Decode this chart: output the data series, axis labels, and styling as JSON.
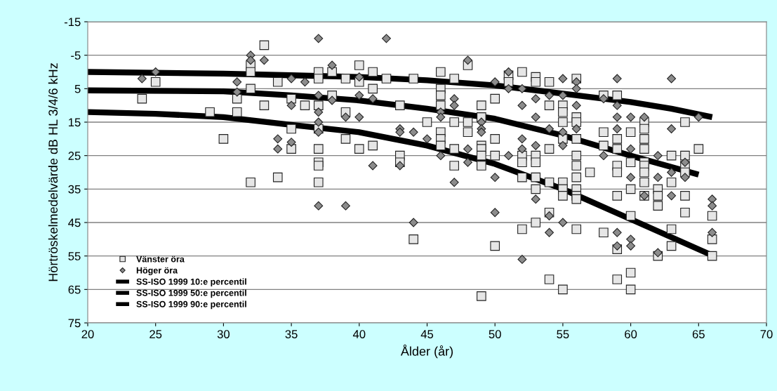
{
  "chart_data": {
    "type": "scatter",
    "xlabel": "Ålder (år)",
    "ylabel": "Hörtröskelmedelvärde dB HL 3/4/6 kHz",
    "xlim": [
      20,
      70
    ],
    "xticks": [
      20,
      25,
      30,
      35,
      40,
      45,
      50,
      55,
      60,
      65,
      70
    ],
    "ylim": [
      75,
      -15
    ],
    "yticks": [
      -15,
      -5,
      5,
      15,
      25,
      35,
      45,
      55,
      65,
      75
    ],
    "grid": "y",
    "legend": "bottom left",
    "series": [
      {
        "name": "Vänster öra",
        "marker": "square",
        "color": "#e6e6e6",
        "x": [
          24,
          25,
          29,
          30,
          31,
          31,
          32,
          32,
          32,
          32,
          33,
          33,
          34,
          34,
          35,
          35,
          35,
          36,
          37,
          37,
          37,
          37,
          37,
          37,
          37,
          37,
          38,
          38,
          39,
          39,
          39,
          40,
          40,
          40,
          41,
          41,
          41,
          42,
          43,
          43,
          43,
          44,
          44,
          45,
          46,
          46,
          46,
          46,
          46,
          46,
          46,
          47,
          47,
          47,
          47,
          48,
          48,
          48,
          49,
          49,
          49,
          49,
          49,
          49,
          49,
          50,
          50,
          50,
          50,
          51,
          51,
          52,
          52,
          52,
          52,
          52,
          53,
          53,
          53,
          53,
          53,
          53,
          53,
          54,
          54,
          54,
          54,
          54,
          54,
          55,
          55,
          55,
          55,
          55,
          55,
          55,
          55,
          56,
          56,
          56,
          56,
          56,
          56,
          56,
          56,
          56,
          56,
          56,
          57,
          58,
          58,
          58,
          58,
          59,
          59,
          59,
          59,
          59,
          59,
          59,
          59,
          60,
          60,
          60,
          60,
          60,
          60,
          61,
          61,
          61,
          61,
          61,
          61,
          61,
          61,
          61,
          62,
          62,
          62,
          62,
          63,
          63,
          63,
          63,
          64,
          64,
          64,
          64,
          64,
          64,
          65,
          66,
          66,
          66
        ],
        "values": [
          8,
          3,
          12,
          20,
          8,
          12,
          -2,
          0,
          5,
          33,
          -8,
          10,
          3,
          31.5,
          8,
          17,
          23,
          10,
          0,
          2,
          10,
          17,
          23,
          27,
          28,
          33,
          0,
          7,
          2,
          12,
          20,
          -2,
          3,
          23,
          0,
          5,
          22,
          2,
          10,
          25,
          27,
          2,
          50,
          15,
          0,
          5,
          7,
          10,
          18,
          20,
          22,
          2,
          15,
          23,
          28,
          -2,
          15,
          18,
          10,
          13.5,
          22,
          23,
          25,
          28,
          67,
          8,
          20,
          25,
          52,
          1,
          3,
          0,
          25,
          27,
          31.5,
          47,
          1.5,
          3,
          25,
          27,
          31.5,
          35,
          45,
          3,
          10,
          23,
          33,
          42,
          62,
          10,
          12,
          15,
          20,
          33,
          35,
          37,
          65,
          2,
          13.5,
          15,
          20,
          25,
          28,
          31.5,
          35,
          37,
          38,
          47,
          30,
          7,
          18,
          22,
          48,
          7,
          20,
          23,
          28,
          30,
          37,
          53,
          62,
          18,
          27,
          35,
          43,
          60,
          65,
          15,
          17,
          20,
          23,
          27,
          28,
          30,
          33,
          37,
          35,
          37,
          40,
          55,
          25,
          33,
          47,
          52,
          15,
          25,
          28,
          30,
          37,
          42,
          23,
          43,
          50,
          55
        ]
      },
      {
        "name": "Höger öra",
        "marker": "diamond",
        "color": "#8c8c8c",
        "x": [
          24,
          25,
          31,
          31,
          32,
          32,
          33,
          34,
          34,
          35,
          35,
          35,
          36,
          37,
          37,
          37,
          37,
          37,
          37,
          38,
          38,
          39,
          39,
          40,
          40,
          40,
          41,
          41,
          42,
          43,
          43,
          43,
          44,
          44,
          45,
          46,
          46,
          46,
          47,
          47,
          47,
          48,
          48,
          48,
          49,
          49,
          49,
          50,
          50,
          50,
          51,
          51,
          51,
          52,
          52,
          52,
          52,
          52,
          53,
          53,
          53,
          53,
          54,
          54,
          54,
          54,
          55,
          55,
          55,
          55,
          55,
          56,
          56,
          56,
          56,
          58,
          58,
          59,
          59,
          59,
          59,
          59,
          59,
          60,
          60,
          60,
          60,
          60,
          61,
          61,
          62,
          62,
          62,
          63,
          63,
          63,
          63,
          64,
          64,
          65,
          66,
          66,
          66
        ],
        "values": [
          2,
          0,
          3,
          6,
          -5,
          -3.5,
          -3.5,
          20,
          23,
          2,
          10,
          21,
          3,
          -10,
          7,
          12,
          15,
          18,
          40,
          -2,
          8.5,
          13.5,
          40,
          1.5,
          7,
          13.5,
          8,
          28,
          -10,
          17,
          18,
          28,
          18,
          45,
          20,
          12,
          13.5,
          25,
          8,
          10,
          33,
          -3.5,
          23,
          27,
          15,
          17,
          18,
          3,
          31.5,
          42,
          0,
          5,
          25,
          5,
          10,
          20,
          23,
          56,
          8,
          13.5,
          22,
          38,
          7,
          17,
          43,
          48,
          2,
          7,
          18,
          22,
          45,
          3,
          5,
          10,
          17,
          8,
          25,
          2,
          10,
          13.5,
          17,
          48,
          52,
          13.5,
          23,
          31.5,
          50,
          52,
          13.5,
          37,
          25,
          31.5,
          54,
          2,
          17,
          30,
          37,
          27,
          31.5,
          13.5,
          38,
          40,
          48
        ]
      },
      {
        "name": "SS-ISO 1999 10:e percentil",
        "type": "line",
        "marker": "none",
        "color": "#000000",
        "x": [
          20,
          30,
          35,
          40,
          45,
          50,
          55,
          60,
          63,
          66
        ],
        "values": [
          0,
          0.5,
          1,
          1.5,
          2.5,
          4,
          6.5,
          9,
          11,
          13.5
        ]
      },
      {
        "name": "SS-ISO 1999 50:e percentil",
        "type": "line",
        "marker": "none",
        "color": "#000000",
        "x": [
          20,
          30,
          35,
          40,
          45,
          50,
          55,
          60,
          65
        ],
        "values": [
          5.5,
          5.8,
          7,
          8.5,
          11,
          14,
          19,
          25,
          30.7
        ]
      },
      {
        "name": "SS-ISO 1999 90:e percentil",
        "type": "line",
        "marker": "none",
        "color": "#000000",
        "x": [
          20,
          25,
          30,
          35,
          40,
          45,
          50,
          55,
          60,
          66
        ],
        "values": [
          12,
          12.5,
          13.5,
          15.8,
          18,
          22,
          27.5,
          35,
          44,
          54.8
        ]
      }
    ]
  }
}
